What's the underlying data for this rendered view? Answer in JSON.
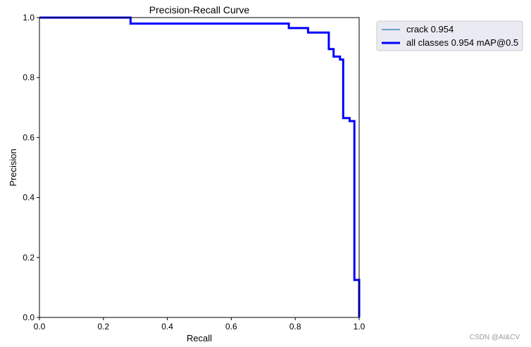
{
  "chart_data": {
    "type": "line",
    "title": "Precision-Recall Curve",
    "xlabel": "Recall",
    "ylabel": "Precision",
    "xlim": [
      0,
      1
    ],
    "ylim": [
      0,
      1
    ],
    "xticks": [
      "0.0",
      "0.2",
      "0.4",
      "0.6",
      "0.8",
      "1.0"
    ],
    "yticks": [
      "0.0",
      "0.2",
      "0.4",
      "0.6",
      "0.8",
      "1.0"
    ],
    "grid": false,
    "legend_position": "outside-top-right",
    "series": [
      {
        "name": "crack 0.954",
        "color": "#1f77b4",
        "x": [
          0,
          0.285,
          0.285,
          0.78,
          0.78,
          0.84,
          0.84,
          0.905,
          0.905,
          0.92,
          0.92,
          0.94,
          0.94,
          0.95,
          0.95,
          0.97,
          0.97,
          0.985,
          0.985,
          1.0,
          1.0
        ],
        "y": [
          1.0,
          1.0,
          0.98,
          0.98,
          0.965,
          0.965,
          0.95,
          0.95,
          0.895,
          0.895,
          0.87,
          0.87,
          0.86,
          0.86,
          0.665,
          0.665,
          0.655,
          0.655,
          0.125,
          0.125,
          0.0
        ]
      },
      {
        "name": "all classes 0.954 mAP@0.5",
        "color": "#0000ff",
        "x": [
          0,
          0.285,
          0.285,
          0.78,
          0.78,
          0.84,
          0.84,
          0.905,
          0.905,
          0.92,
          0.92,
          0.94,
          0.94,
          0.95,
          0.95,
          0.97,
          0.97,
          0.985,
          0.985,
          1.0,
          1.0
        ],
        "y": [
          1.0,
          1.0,
          0.98,
          0.98,
          0.965,
          0.965,
          0.95,
          0.95,
          0.895,
          0.895,
          0.87,
          0.87,
          0.86,
          0.86,
          0.665,
          0.665,
          0.655,
          0.655,
          0.125,
          0.125,
          0.0
        ]
      }
    ]
  },
  "watermark": "CSDN @AI&CV"
}
